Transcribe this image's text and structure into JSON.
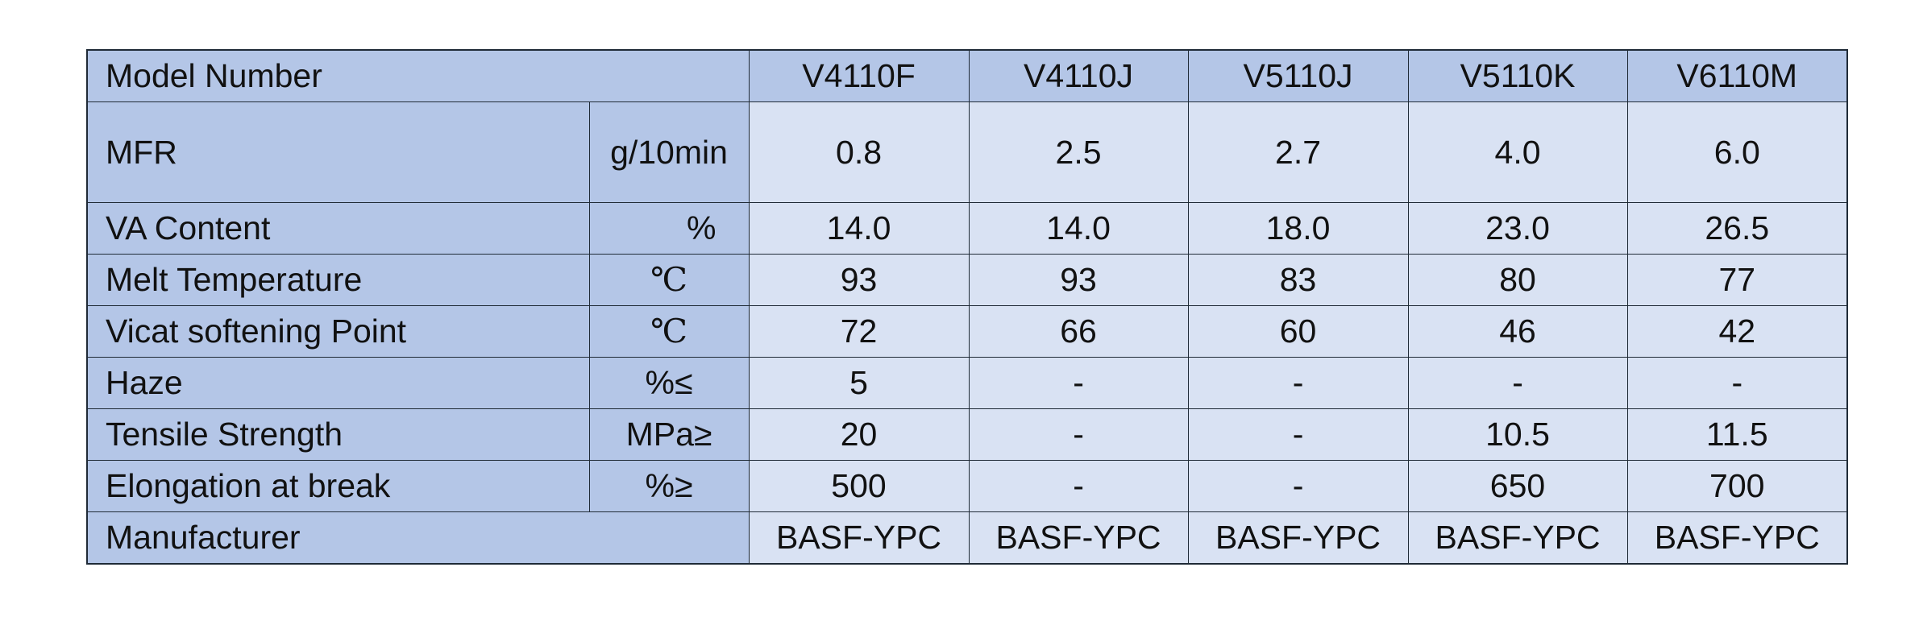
{
  "header": {
    "label": "Model Number",
    "models": [
      "V4110F",
      "V4110J",
      "V5110J",
      "V5110K",
      "V6110M"
    ]
  },
  "rows": [
    {
      "label": "MFR",
      "unit": "g/10min",
      "values": [
        "0.8",
        "2.5",
        "2.7",
        "4.0",
        "6.0"
      ]
    },
    {
      "label": "VA Content",
      "unit": "%",
      "values": [
        "14.0",
        "14.0",
        "18.0",
        "23.0",
        "26.5"
      ]
    },
    {
      "label": "Melt Temperature",
      "unit": "℃",
      "values": [
        "93",
        "93",
        "83",
        "80",
        "77"
      ]
    },
    {
      "label": "Vicat softening Point",
      "unit": "℃",
      "values": [
        "72",
        "66",
        "60",
        "46",
        "42"
      ]
    },
    {
      "label": "Haze",
      "unit": "%≤",
      "values": [
        "5",
        "-",
        "-",
        "-",
        "-"
      ]
    },
    {
      "label": "Tensile Strength",
      "unit": "MPa≥",
      "values": [
        "20",
        "-",
        "-",
        "10.5",
        "11.5"
      ]
    },
    {
      "label": "Elongation at break",
      "unit": "%≥",
      "values": [
        "500",
        "-",
        "-",
        "650",
        "700"
      ]
    }
  ],
  "footer": {
    "label": "Manufacturer",
    "values": [
      "BASF-YPC",
      "BASF-YPC",
      "BASF-YPC",
      "BASF-YPC",
      "BASF-YPC"
    ]
  }
}
